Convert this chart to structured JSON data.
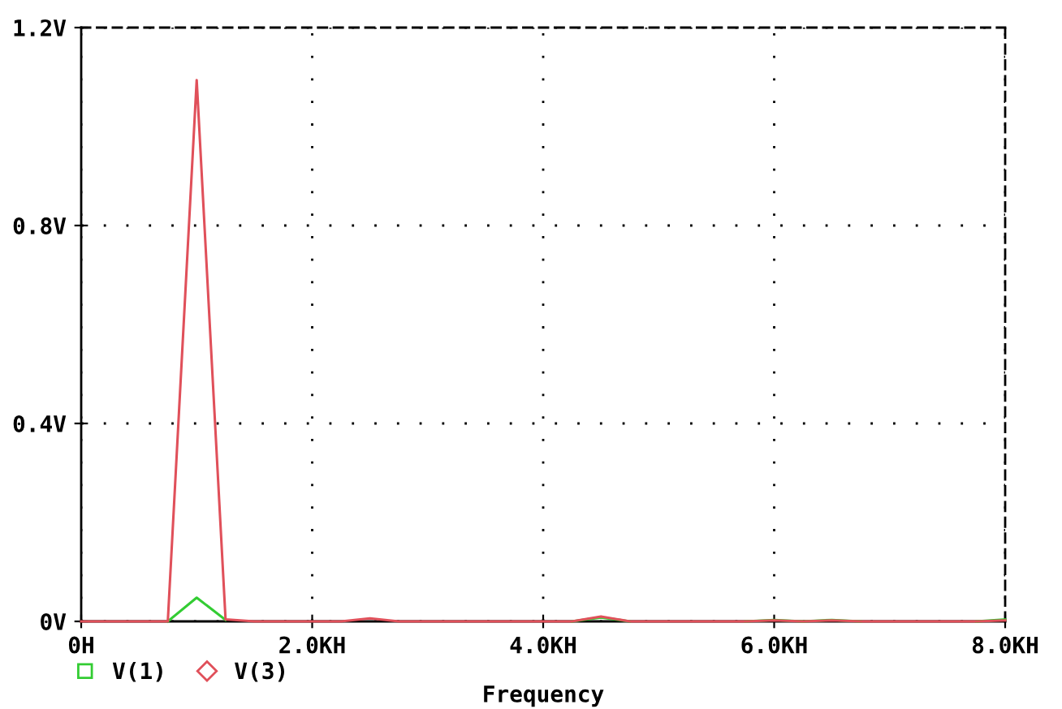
{
  "chart_data": {
    "type": "line",
    "xlabel": "Frequency",
    "x": [
      0,
      0.25,
      0.5,
      0.75,
      1,
      1.25,
      1.5,
      1.75,
      2,
      2.25,
      2.5,
      2.75,
      3,
      3.25,
      3.5,
      3.75,
      4,
      4.25,
      4.5,
      4.75,
      5,
      5.25,
      5.5,
      5.75,
      6,
      6.25,
      6.5,
      6.75,
      7,
      7.25,
      7.5,
      7.75,
      8
    ],
    "series": [
      {
        "name": "V(1)",
        "color": "#33cc33",
        "values": [
          null,
          null,
          null,
          0,
          0.048,
          0.003,
          null,
          null,
          null,
          null,
          null,
          null,
          null,
          null,
          null,
          null,
          null,
          0,
          0.008,
          0,
          null,
          null,
          null,
          0,
          0.003,
          0,
          0.003,
          0,
          null,
          null,
          null,
          0,
          0.004
        ]
      },
      {
        "name": "V(3)",
        "color": "#e0505a",
        "values": [
          0,
          0,
          0,
          0,
          1.094,
          0.004,
          0,
          0,
          0,
          0,
          0.006,
          0,
          0,
          0,
          0,
          0,
          0,
          0,
          0.01,
          0,
          0,
          0,
          0,
          0,
          0.002,
          0,
          0.002,
          0,
          0,
          0,
          0,
          0,
          0.002
        ]
      }
    ],
    "xlim": [
      0,
      8
    ],
    "ylim": [
      0,
      1.2
    ],
    "xticks": [
      {
        "value": 0,
        "label": "0H"
      },
      {
        "value": 2,
        "label": "2.0KH"
      },
      {
        "value": 4,
        "label": "4.0KH"
      },
      {
        "value": 6,
        "label": "6.0KH"
      },
      {
        "value": 8,
        "label": "8.0KH"
      }
    ],
    "yticks": [
      {
        "value": 0,
        "label": "0V"
      },
      {
        "value": 0.4,
        "label": "0.4V"
      },
      {
        "value": 0.8,
        "label": "0.8V"
      },
      {
        "value": 1.2,
        "label": "1.2V"
      }
    ],
    "grid": true,
    "legend": "bottom left",
    "marker": "none",
    "line_style": "solid"
  }
}
